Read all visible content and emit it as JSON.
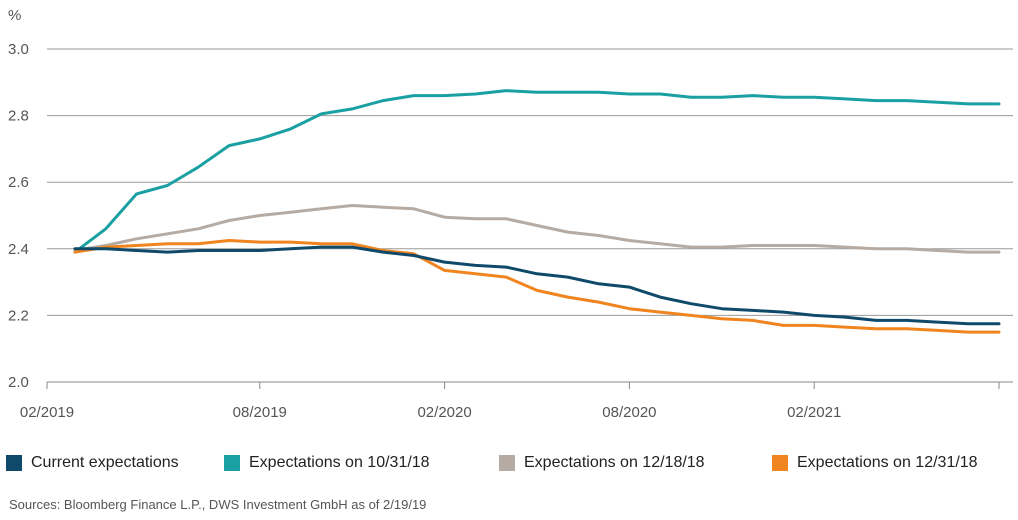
{
  "chart_data": {
    "type": "line",
    "unit_label": "%",
    "ylim": [
      2.0,
      3.0
    ],
    "y_ticks": [
      2.0,
      2.2,
      2.4,
      2.6,
      2.8,
      3.0
    ],
    "y_tick_labels": [
      "2.0",
      "2.2",
      "2.4",
      "2.6",
      "2.8",
      "3.0"
    ],
    "x_ticks": [
      0,
      6,
      12,
      18,
      24,
      30
    ],
    "x_tick_labels": [
      "02/2019",
      "08/2019",
      "02/2020",
      "08/2020",
      "02/2021",
      ""
    ],
    "x_range": [
      -1,
      30
    ],
    "grid": "horizontal",
    "legend_position": "bottom",
    "x": [
      0,
      1,
      2,
      3,
      4,
      5,
      6,
      7,
      8,
      9,
      10,
      11,
      12,
      13,
      14,
      15,
      16,
      17,
      18,
      19,
      20,
      21,
      22,
      23,
      24,
      25,
      26,
      27,
      28,
      29,
      30
    ],
    "series": [
      {
        "name": "Current expectations",
        "color": "#0f4a6b",
        "values": [
          2.4,
          2.4,
          2.395,
          2.39,
          2.395,
          2.395,
          2.395,
          2.4,
          2.405,
          2.405,
          2.39,
          2.38,
          2.36,
          2.35,
          2.345,
          2.325,
          2.315,
          2.295,
          2.285,
          2.255,
          2.235,
          2.22,
          2.215,
          2.21,
          2.2,
          2.195,
          2.185,
          2.185,
          2.18,
          2.175,
          2.175
        ]
      },
      {
        "name": "Expectations on 10/31/18",
        "color": "#1aa0a2",
        "values": [
          2.39,
          2.46,
          2.565,
          2.59,
          2.645,
          2.71,
          2.73,
          2.76,
          2.805,
          2.82,
          2.845,
          2.86,
          2.86,
          2.865,
          2.875,
          2.87,
          2.87,
          2.87,
          2.865,
          2.865,
          2.855,
          2.855,
          2.86,
          2.855,
          2.855,
          2.85,
          2.845,
          2.845,
          2.84,
          2.835,
          2.835
        ]
      },
      {
        "name": "Expectations on 12/18/18",
        "color": "#b5aba2",
        "values": [
          2.395,
          2.41,
          2.43,
          2.445,
          2.46,
          2.485,
          2.5,
          2.51,
          2.52,
          2.53,
          2.525,
          2.52,
          2.495,
          2.49,
          2.49,
          2.47,
          2.45,
          2.44,
          2.425,
          2.415,
          2.405,
          2.405,
          2.41,
          2.41,
          2.41,
          2.405,
          2.4,
          2.4,
          2.395,
          2.39,
          2.39
        ]
      },
      {
        "name": "Expectations on 12/31/18",
        "color": "#f08520",
        "values": [
          2.39,
          2.405,
          2.41,
          2.415,
          2.415,
          2.425,
          2.42,
          2.42,
          2.415,
          2.415,
          2.395,
          2.385,
          2.335,
          2.325,
          2.315,
          2.275,
          2.255,
          2.24,
          2.22,
          2.21,
          2.2,
          2.19,
          2.185,
          2.17,
          2.17,
          2.165,
          2.16,
          2.16,
          2.155,
          2.15,
          2.15
        ]
      }
    ]
  },
  "source_note": "Sources: Bloomberg Finance L.P., DWS Investment GmbH as of 2/19/19"
}
